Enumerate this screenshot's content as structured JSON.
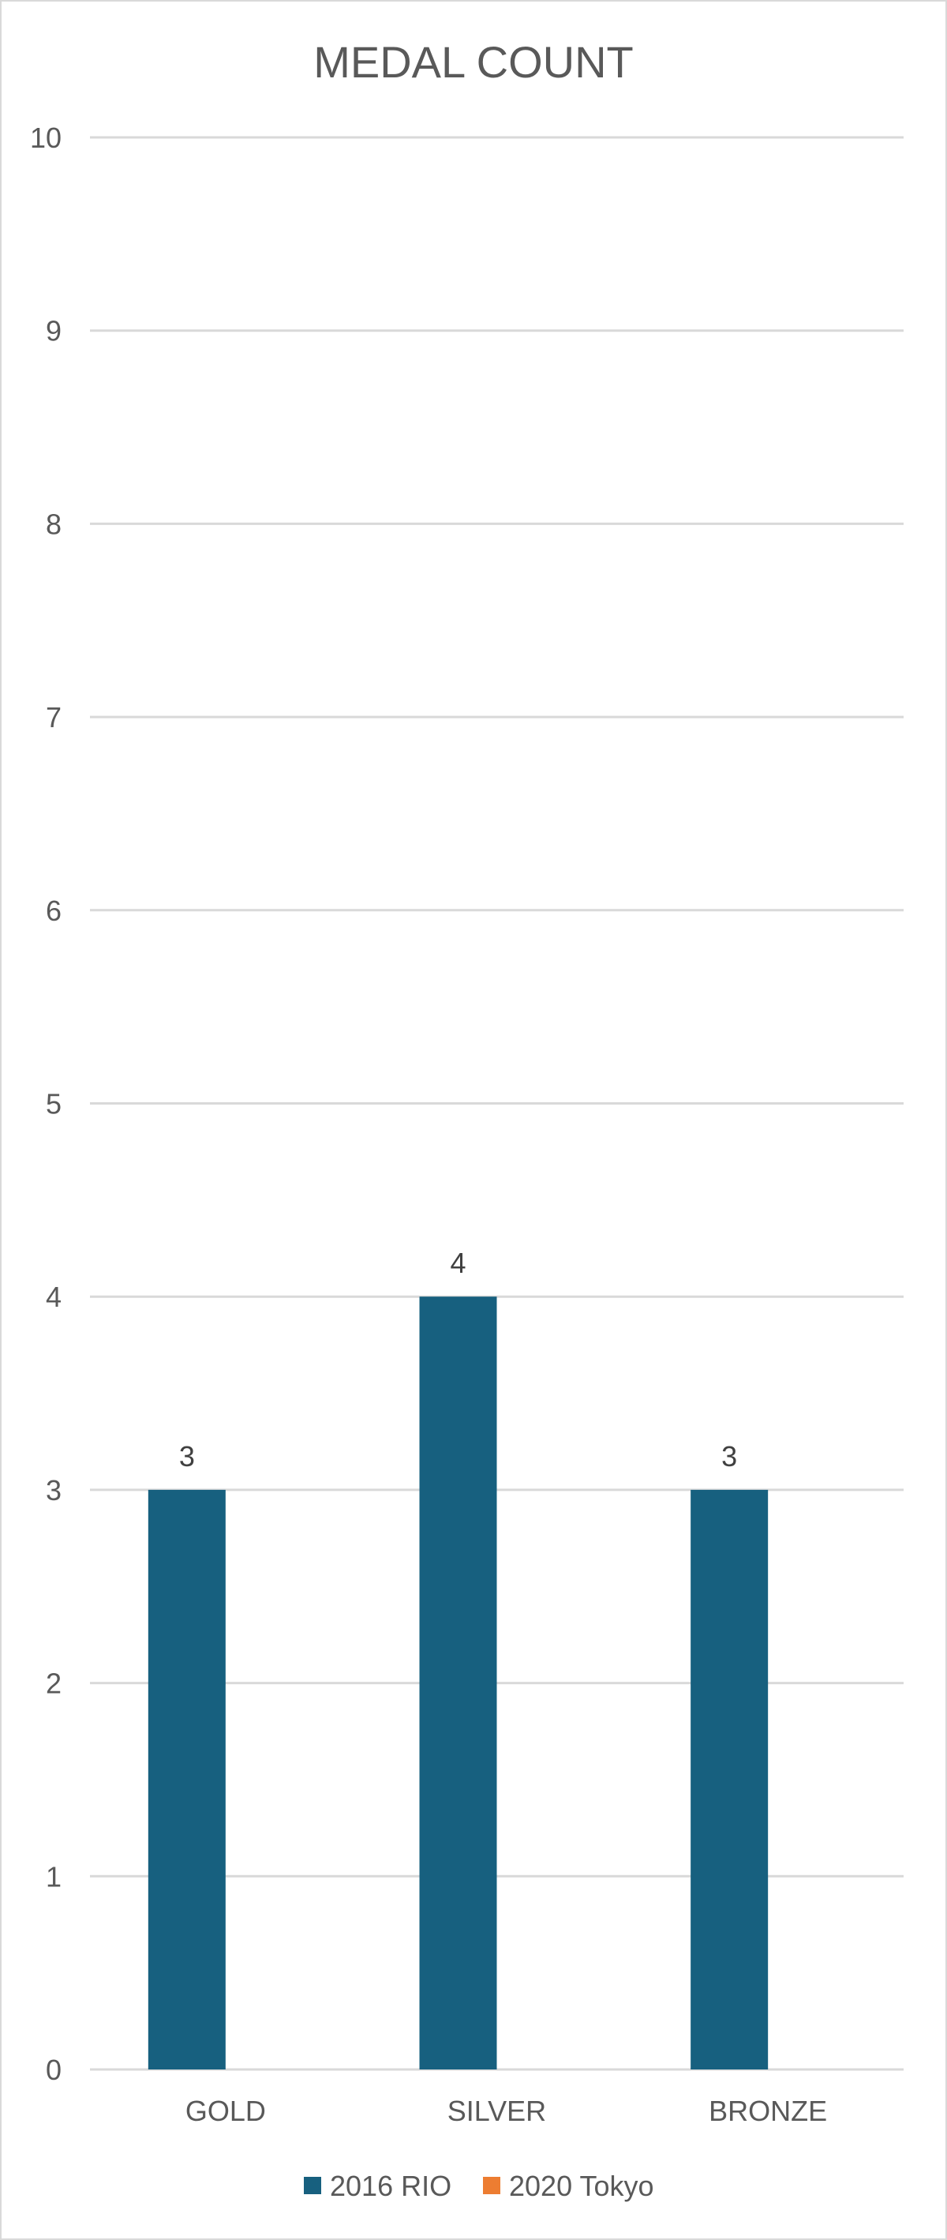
{
  "chart_data": {
    "type": "bar",
    "title": "MEDAL COUNT",
    "xlabel": "",
    "ylabel": "",
    "categories": [
      "GOLD",
      "SILVER",
      "BRONZE"
    ],
    "series": [
      {
        "name": "2016 RIO",
        "values": [
          3,
          4,
          3
        ],
        "color": "#17607f"
      },
      {
        "name": "2020 Tokyo",
        "values": [
          null,
          null,
          null
        ],
        "color": "#ed7d31"
      }
    ],
    "ylim": [
      0,
      10
    ],
    "yticks": [
      "0",
      "1",
      "2",
      "3",
      "4",
      "5",
      "6",
      "7",
      "8",
      "9",
      "10"
    ],
    "data_labels": true,
    "grid": true,
    "legend_position": "bottom"
  }
}
